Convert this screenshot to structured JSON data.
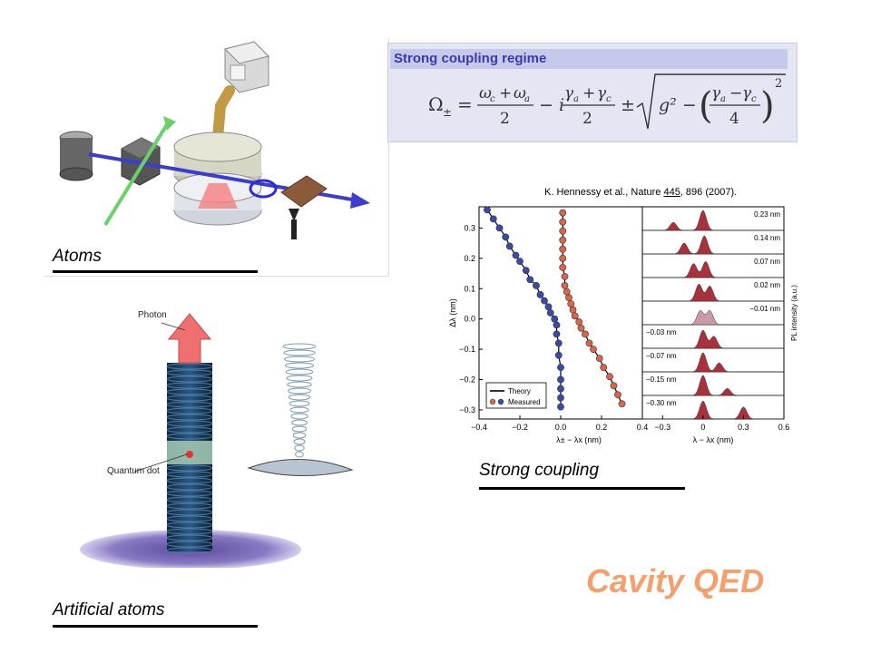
{
  "captions": {
    "atoms": "Atoms",
    "artificial_atoms": "Artificial atoms",
    "strong_coupling": "Strong coupling"
  },
  "title": "Cavity QED",
  "formula_box": {
    "heading": "Strong coupling regime",
    "omega": "Ω",
    "pm": "±",
    "eq": "=",
    "num1": "ω",
    "num1_sub1": "c",
    "plus": "+",
    "num1_b": "ω",
    "num1_sub2": "a",
    "den1": "2",
    "minus_i": "− i",
    "num2": "γ",
    "num2_sub1": "a",
    "num2_b": "γ",
    "num2_sub2": "c",
    "den2": "2",
    "g2": "g² −",
    "den3": "4",
    "minus": "−",
    "sq": "2"
  },
  "reference": {
    "prefix": "K. Hennessy et al., Nature ",
    "volume": "445",
    "suffix": ", 896 (2007)."
  },
  "micropillar_labels": {
    "photon": "Photon",
    "quantum_dot": "Quantum dot"
  },
  "chart_data": {
    "type": "scatter",
    "left_panel": {
      "xlabel": "λ± − λx (nm)",
      "ylabel": "Δλ (nm)",
      "xlim": [
        -0.4,
        0.4
      ],
      "ylim": [
        -0.33,
        0.37
      ],
      "x_ticks": [
        "−0.4",
        "−0.2",
        "0.0",
        "0.2",
        "0.4"
      ],
      "y_ticks": [
        "0.3",
        "0.2",
        "0.1",
        "0.0",
        "−0.1",
        "−0.2",
        "−0.3"
      ],
      "legend": [
        "Theory",
        "Measured"
      ],
      "series": [
        {
          "color": "#3a4aa8",
          "points": [
            [
              -0.36,
              0.36
            ],
            [
              -0.33,
              0.33
            ],
            [
              -0.3,
              0.3
            ],
            [
              -0.27,
              0.27
            ],
            [
              -0.25,
              0.24
            ],
            [
              -0.22,
              0.21
            ],
            [
              -0.2,
              0.19
            ],
            [
              -0.17,
              0.16
            ],
            [
              -0.15,
              0.13
            ],
            [
              -0.12,
              0.11
            ],
            [
              -0.1,
              0.08
            ],
            [
              -0.08,
              0.06
            ],
            [
              -0.06,
              0.04
            ],
            [
              -0.05,
              0.02
            ],
            [
              -0.03,
              0.0
            ],
            [
              -0.02,
              -0.02
            ],
            [
              -0.02,
              -0.05
            ],
            [
              -0.01,
              -0.08
            ],
            [
              -0.01,
              -0.12
            ],
            [
              0.0,
              -0.16
            ],
            [
              0.0,
              -0.2
            ],
            [
              0.0,
              -0.23
            ],
            [
              0.0,
              -0.26
            ],
            [
              0.0,
              -0.29
            ]
          ]
        },
        {
          "color": "#d9664a",
          "points": [
            [
              0.01,
              0.35
            ],
            [
              0.01,
              0.32
            ],
            [
              0.01,
              0.29
            ],
            [
              0.01,
              0.26
            ],
            [
              0.01,
              0.23
            ],
            [
              0.01,
              0.2
            ],
            [
              0.01,
              0.17
            ],
            [
              0.02,
              0.14
            ],
            [
              0.02,
              0.11
            ],
            [
              0.03,
              0.09
            ],
            [
              0.04,
              0.07
            ],
            [
              0.05,
              0.05
            ],
            [
              0.06,
              0.03
            ],
            [
              0.07,
              0.01
            ],
            [
              0.09,
              -0.01
            ],
            [
              0.1,
              -0.03
            ],
            [
              0.12,
              -0.05
            ],
            [
              0.14,
              -0.08
            ],
            [
              0.16,
              -0.1
            ],
            [
              0.19,
              -0.13
            ],
            [
              0.21,
              -0.16
            ],
            [
              0.24,
              -0.19
            ],
            [
              0.26,
              -0.22
            ],
            [
              0.28,
              -0.25
            ],
            [
              0.3,
              -0.28
            ]
          ]
        }
      ]
    },
    "right_panel": {
      "xlabel": "λ − λx (nm)",
      "ylabel": "PL intensity (a.u.)",
      "x_ticks": [
        "−0.3",
        "0",
        "0.3",
        "0.6"
      ],
      "xlim": [
        -0.45,
        0.6
      ],
      "traces": [
        {
          "label": "0.23 nm",
          "peaks": [
            [
              -0.22,
              0.4
            ],
            [
              0.0,
              1.0
            ]
          ]
        },
        {
          "label": "0.14 nm",
          "peaks": [
            [
              -0.14,
              0.55
            ],
            [
              0.01,
              0.9
            ]
          ]
        },
        {
          "label": "0.07 nm",
          "peaks": [
            [
              -0.07,
              0.7
            ],
            [
              0.02,
              0.8
            ]
          ]
        },
        {
          "label": "0.02 nm",
          "peaks": [
            [
              -0.03,
              0.85
            ],
            [
              0.05,
              0.75
            ]
          ]
        },
        {
          "label": "−0.01 nm",
          "peaks": [
            [
              -0.02,
              0.7
            ],
            [
              0.05,
              0.7
            ]
          ]
        },
        {
          "label": "−0.03 nm",
          "peaks": [
            [
              0.0,
              0.9
            ],
            [
              0.08,
              0.6
            ]
          ]
        },
        {
          "label": "−0.07 nm",
          "peaks": [
            [
              0.0,
              0.95
            ],
            [
              0.12,
              0.45
            ]
          ]
        },
        {
          "label": "−0.15 nm",
          "peaks": [
            [
              0.0,
              1.0
            ],
            [
              0.18,
              0.35
            ]
          ]
        },
        {
          "label": "−0.30 nm",
          "peaks": [
            [
              0.0,
              0.9
            ],
            [
              0.3,
              0.6
            ]
          ]
        }
      ]
    }
  },
  "colors": {
    "title": "#f4a06d",
    "blue_dots": "#3a4aa8",
    "red_dots": "#d9664a",
    "spectrum_fill": "#a8323c"
  }
}
